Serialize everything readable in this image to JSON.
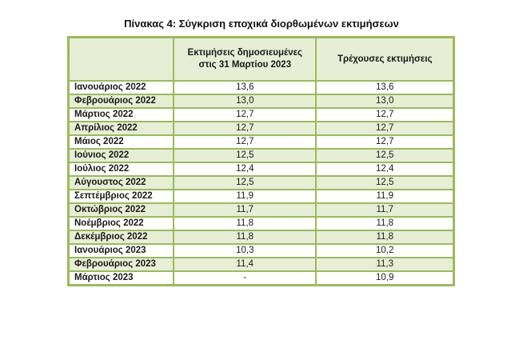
{
  "title": "Πίνακας 4: Σύγκριση εποχικά διορθωμένων εκτιμήσεων",
  "table": {
    "headers": [
      "",
      "Εκτιμήσεις δημοσιευμένες στις 31 Μαρτίου 2023",
      "Τρέχουσες εκτιμήσεις"
    ],
    "header_lines": {
      "col2_line1": "Εκτιμήσεις δημοσιευμένες",
      "col2_line2": "στις 31 Μαρτίου 2023",
      "col3": "Τρέχουσες εκτιμήσεις"
    },
    "rows": [
      {
        "month": "Ιανουάριος 2022",
        "published": "13,6",
        "current": "13,6"
      },
      {
        "month": "Φεβρουάριος 2022",
        "published": "13,0",
        "current": "13,0"
      },
      {
        "month": "Μάρτιος 2022",
        "published": "12,7",
        "current": "12,7"
      },
      {
        "month": "Απρίλιος 2022",
        "published": "12,7",
        "current": "12,7"
      },
      {
        "month": "Μάιος 2022",
        "published": "12,7",
        "current": "12,7"
      },
      {
        "month": "Ιούνιος 2022",
        "published": "12,5",
        "current": "12,5"
      },
      {
        "month": "Ιούλιος 2022",
        "published": "12,4",
        "current": "12,4"
      },
      {
        "month": "Αύγουστος 2022",
        "published": "12,5",
        "current": "12,5"
      },
      {
        "month": "Σεπτέμβριος 2022",
        "published": "11,9",
        "current": "11,9"
      },
      {
        "month": "Οκτώβριος 2022",
        "published": "11,7",
        "current": "11,7"
      },
      {
        "month": "Νοέμβριος 2022",
        "published": "11,8",
        "current": "11,8"
      },
      {
        "month": "Δεκέμβριος 2022",
        "published": "11,8",
        "current": "11,8"
      },
      {
        "month": "Ιανουάριος 2023",
        "published": "10,3",
        "current": "10,2"
      },
      {
        "month": "Φεβρουάριος 2023",
        "published": "11,4",
        "current": "11,3"
      },
      {
        "month": "Μάρτιος 2023",
        "published": "-",
        "current": "10,9"
      }
    ]
  },
  "colors": {
    "border": "#9bbb59",
    "band": "#e6eed6",
    "white": "#ffffff"
  }
}
